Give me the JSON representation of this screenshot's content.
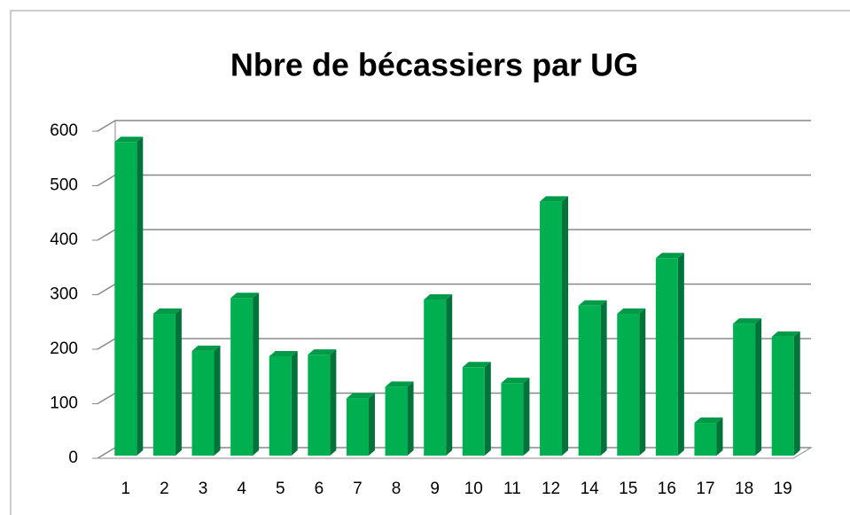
{
  "chart_data": {
    "type": "bar",
    "title": "Nbre de bécassiers par UG",
    "categories": [
      "1",
      "2",
      "3",
      "4",
      "5",
      "6",
      "7",
      "8",
      "9",
      "10",
      "11",
      "12",
      "14",
      "15",
      "16",
      "17",
      "18",
      "19"
    ],
    "values": [
      580,
      265,
      197,
      294,
      187,
      190,
      110,
      131,
      291,
      167,
      138,
      471,
      280,
      265,
      367,
      65,
      247,
      223
    ],
    "color": "#00b050",
    "ylim": [
      0,
      600
    ],
    "yticks": [
      0,
      100,
      200,
      300,
      400,
      500,
      600
    ],
    "grid": true
  }
}
